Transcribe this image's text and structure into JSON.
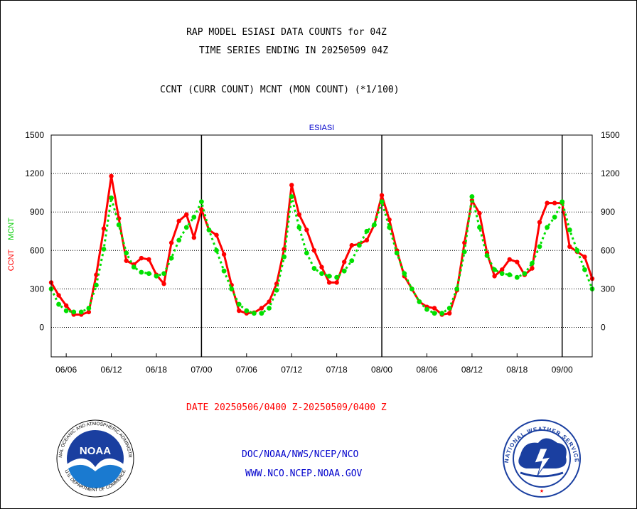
{
  "header": {
    "title_line1": "RAP MODEL ESIASI DATA COUNTS for 04Z",
    "title_line2": "TIME SERIES ENDING IN 20250509 04Z",
    "subtitle": "CCNT (CURR COUNT) MCNT (MON COUNT) (*1/100)"
  },
  "footer": {
    "date_range": "DATE 20250506/0400 Z-20250509/0400 Z",
    "org": "DOC/NOAA/NWS/NCEP/NCO",
    "url": "WWW.NCO.NCEP.NOAA.GOV"
  },
  "logos": {
    "noaa_text": "NOAA",
    "noaa_ring": "NATIONAL OCEANIC AND ATMOSPHERIC ADMINISTRATION",
    "noaa_ring_bottom": "U.S. DEPARTMENT OF COMMERCE",
    "nws_ring": "NATIONAL WEATHER SERVICE"
  },
  "chart_data": {
    "type": "line",
    "title": "ESIASI",
    "ylabel_left_1": "CCNT",
    "ylabel_left_2": "MCNT",
    "ylim": [
      -230,
      1500
    ],
    "yticks": [
      0,
      300,
      600,
      900,
      1200,
      1500
    ],
    "xticks": [
      "06/06",
      "06/12",
      "06/18",
      "07/00",
      "07/06",
      "07/12",
      "07/18",
      "08/00",
      "08/06",
      "08/12",
      "08/18",
      "09/00"
    ],
    "xtick_hours": [
      6,
      12,
      18,
      24,
      30,
      36,
      42,
      48,
      54,
      60,
      66,
      72
    ],
    "xlim_hours": [
      4,
      76
    ],
    "day_boundaries_hours": [
      24,
      48,
      72
    ],
    "grid": true,
    "colors": {
      "ccnt": "#ff0000",
      "mcnt": "#00e000",
      "axis": "#000000",
      "title": "#0000cc"
    },
    "series": [
      {
        "name": "CCNT",
        "x": [
          4,
          5,
          6,
          7,
          8,
          9,
          10,
          11,
          12,
          13,
          14,
          15,
          16,
          17,
          18,
          19,
          20,
          21,
          22,
          23,
          24,
          25,
          26,
          27,
          28,
          29,
          30,
          31,
          32,
          33,
          34,
          35,
          36,
          37,
          38,
          39,
          40,
          41,
          42,
          43,
          44,
          45,
          46,
          47,
          48,
          49,
          50,
          51,
          52,
          53,
          54,
          55,
          56,
          57,
          58,
          59,
          60,
          61,
          62,
          63,
          64,
          65,
          66,
          67,
          68,
          69,
          70,
          71,
          72,
          73,
          74,
          75,
          76
        ],
        "values": [
          350,
          250,
          170,
          100,
          100,
          120,
          410,
          770,
          1180,
          850,
          520,
          490,
          540,
          530,
          410,
          340,
          660,
          830,
          880,
          700,
          920,
          760,
          720,
          570,
          330,
          130,
          110,
          115,
          150,
          200,
          340,
          610,
          1110,
          880,
          760,
          600,
          470,
          350,
          350,
          510,
          640,
          650,
          680,
          800,
          1030,
          840,
          600,
          400,
          300,
          200,
          160,
          150,
          100,
          110,
          290,
          660,
          990,
          890,
          580,
          400,
          450,
          530,
          510,
          410,
          460,
          820,
          970,
          970,
          970,
          630,
          590,
          550,
          380
        ]
      },
      {
        "name": "MCNT",
        "x": [
          4,
          5,
          6,
          7,
          8,
          9,
          10,
          11,
          12,
          13,
          14,
          15,
          16,
          17,
          18,
          19,
          20,
          21,
          22,
          23,
          24,
          25,
          26,
          27,
          28,
          29,
          30,
          31,
          32,
          33,
          34,
          35,
          36,
          37,
          38,
          39,
          40,
          41,
          42,
          43,
          44,
          45,
          46,
          47,
          48,
          49,
          50,
          51,
          52,
          53,
          54,
          55,
          56,
          57,
          58,
          59,
          60,
          61,
          62,
          63,
          64,
          65,
          66,
          67,
          68,
          69,
          70,
          71,
          72,
          73,
          74,
          75,
          76
        ],
        "values": [
          300,
          180,
          130,
          120,
          120,
          150,
          330,
          610,
          1010,
          800,
          580,
          470,
          430,
          420,
          400,
          420,
          540,
          680,
          780,
          860,
          980,
          760,
          600,
          440,
          300,
          180,
          130,
          110,
          110,
          150,
          290,
          550,
          1020,
          780,
          580,
          460,
          420,
          400,
          390,
          440,
          520,
          640,
          750,
          800,
          980,
          780,
          580,
          420,
          300,
          200,
          140,
          110,
          110,
          150,
          300,
          590,
          1020,
          780,
          560,
          450,
          420,
          410,
          390,
          420,
          500,
          630,
          780,
          860,
          980,
          760,
          600,
          450,
          300
        ]
      }
    ]
  }
}
